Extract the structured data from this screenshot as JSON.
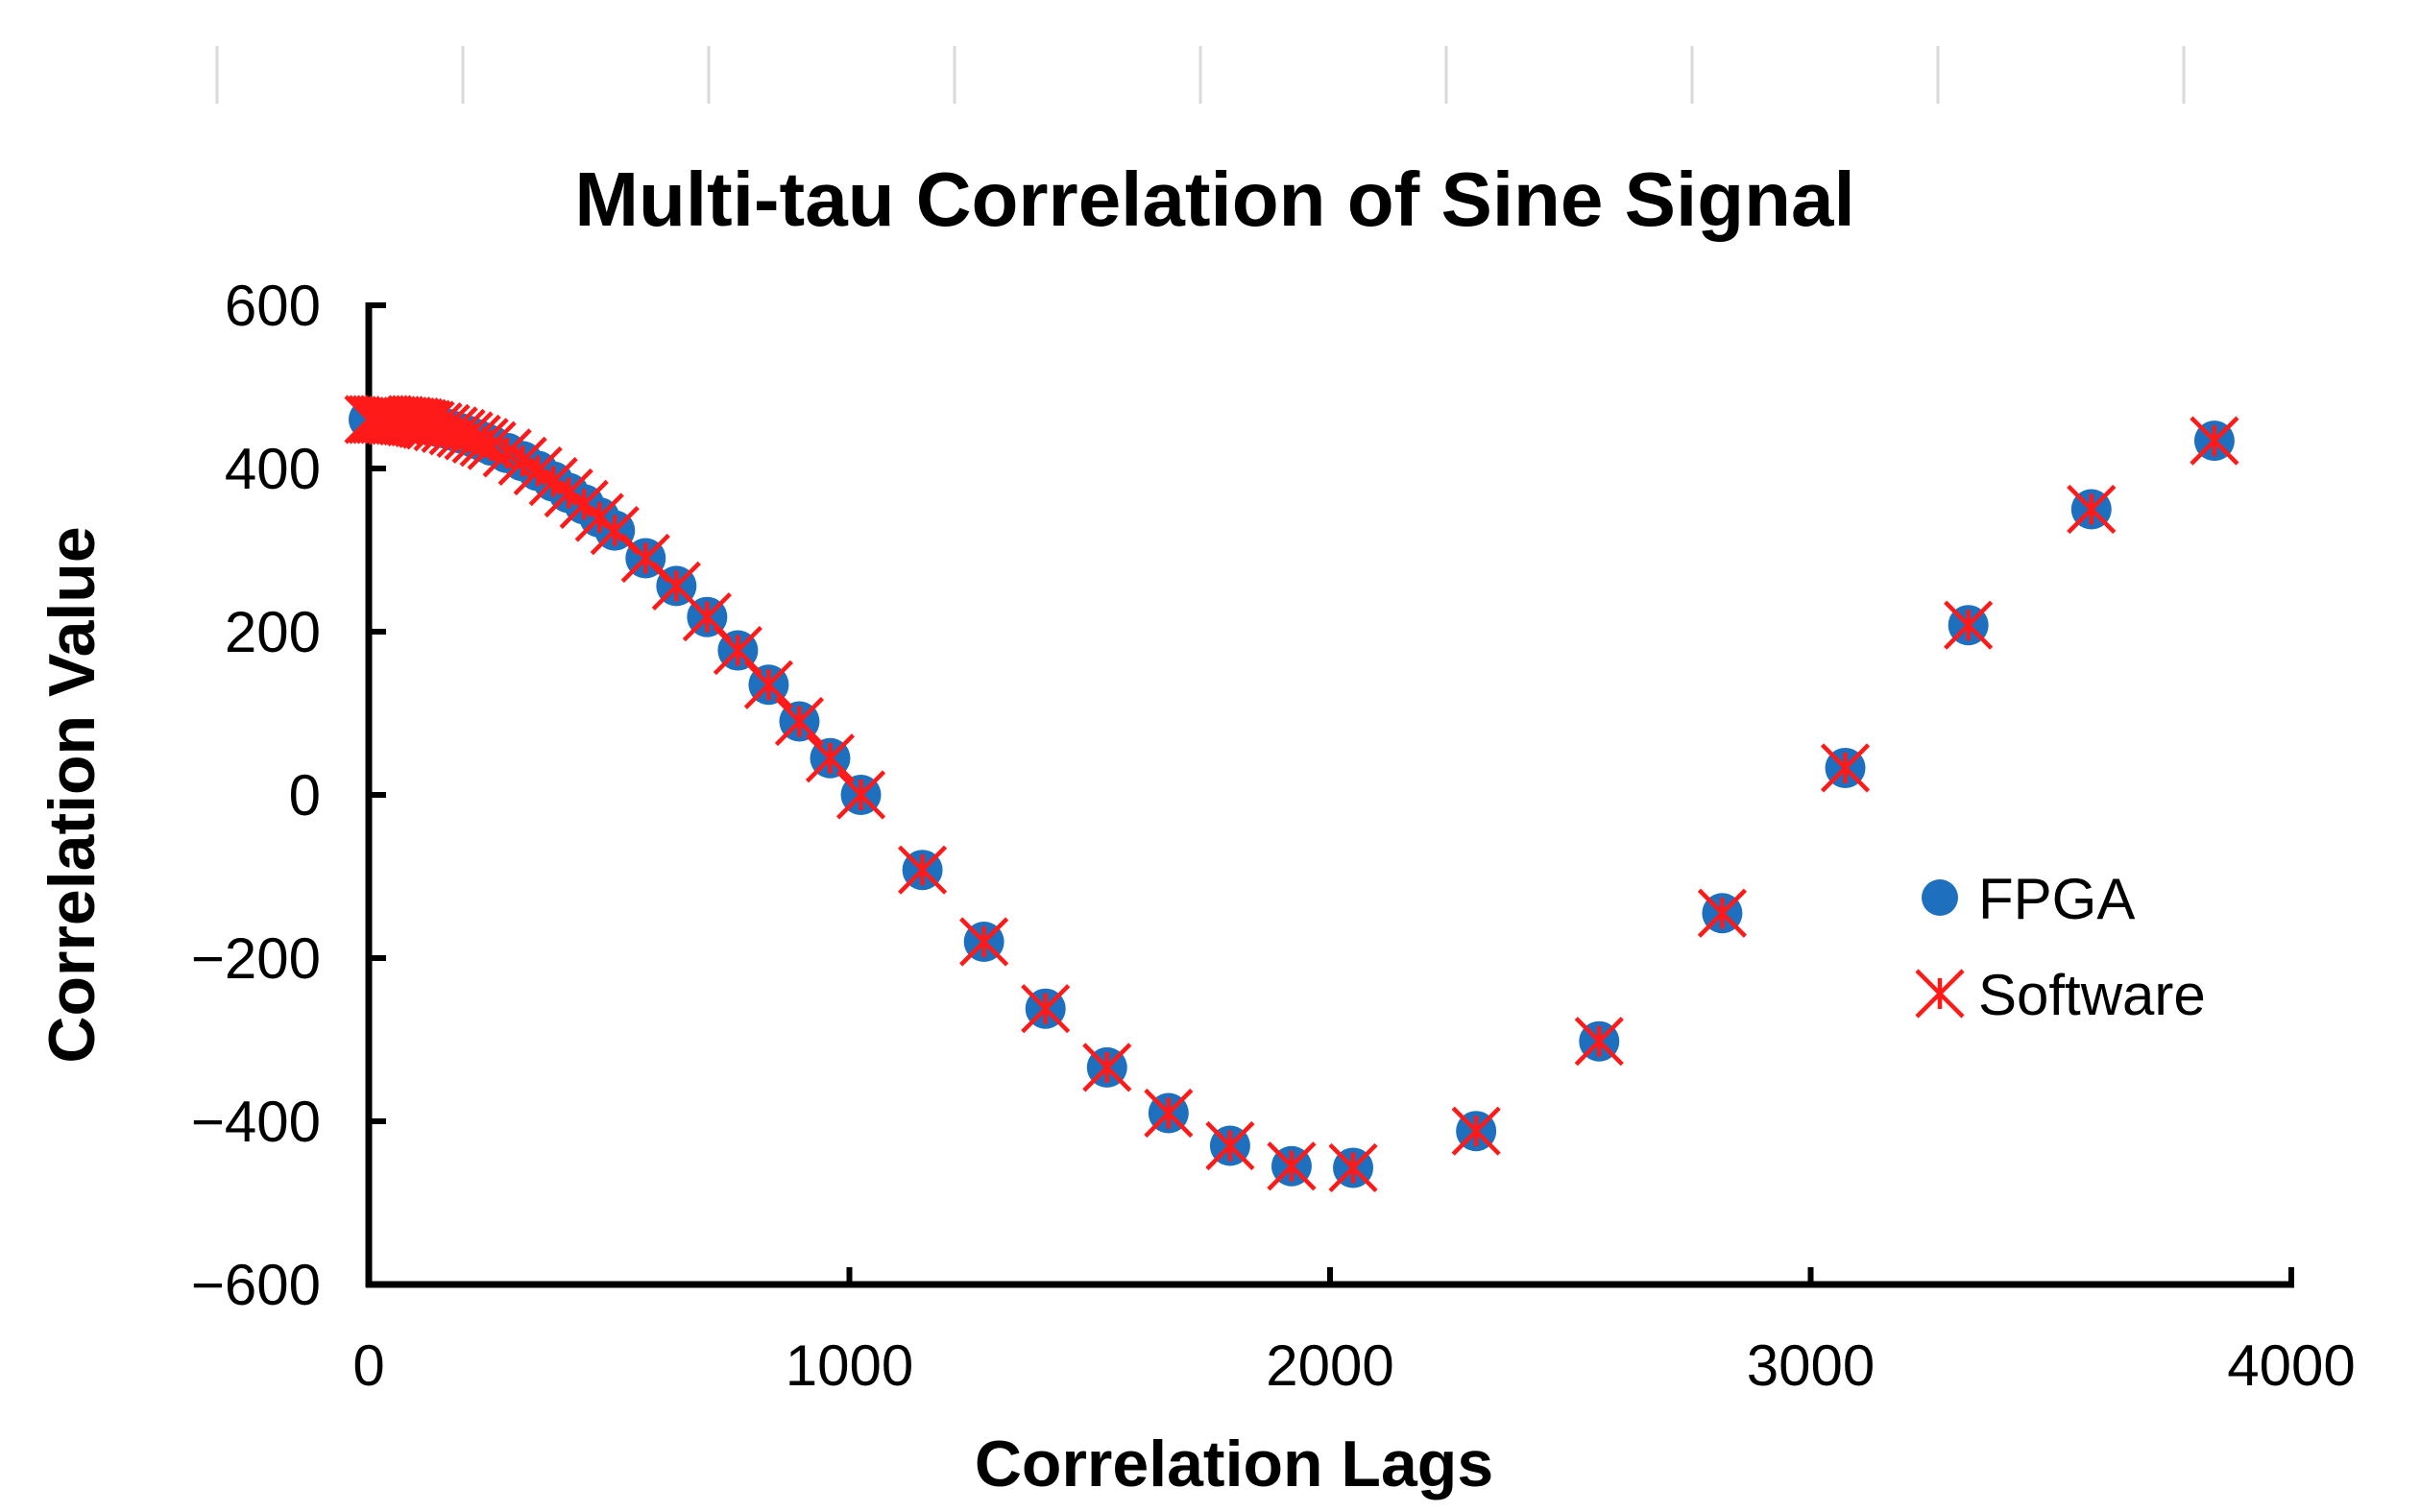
{
  "chart_data": {
    "type": "scatter",
    "title": "Multi-tau Correlation of Sine Signal",
    "xlabel": "Correlation Lags",
    "ylabel": "Correlation Value",
    "xlim": [
      0,
      4000
    ],
    "ylim": [
      -600,
      600
    ],
    "xticks": [
      0,
      1000,
      2000,
      3000,
      4000
    ],
    "yticks": [
      600,
      400,
      200,
      0,
      -200,
      -400,
      -600
    ],
    "ytick_labels": [
      "600",
      "400",
      "200",
      "0",
      "−200",
      "−400",
      "−600"
    ],
    "grid": false,
    "legend_position": "right",
    "series": [
      {
        "name": "FPGA",
        "marker": "circle",
        "color": "#1f6fbf",
        "x": [
          0,
          8,
          16,
          24,
          32,
          40,
          48,
          56,
          64,
          72,
          80,
          88,
          96,
          104,
          112,
          120,
          128,
          144,
          160,
          176,
          192,
          208,
          224,
          240,
          256,
          288,
          320,
          352,
          384,
          416,
          448,
          480,
          512,
          576,
          640,
          704,
          768,
          832,
          896,
          960,
          1024,
          1152,
          1280,
          1408,
          1536,
          1664,
          1792,
          1920,
          2048,
          2304,
          2560,
          2816,
          3072,
          3328,
          3584,
          3840
        ],
        "y": [
          460,
          460,
          460,
          460,
          460,
          460,
          459,
          459,
          459,
          458,
          458,
          457,
          457,
          456,
          455,
          454,
          453,
          451,
          449,
          446,
          443,
          440,
          436,
          432,
          428,
          419,
          409,
          397,
          384,
          370,
          356,
          340,
          324,
          290,
          256,
          218,
          177,
          135,
          90,
          45,
          0,
          -92,
          -180,
          -262,
          -334,
          -390,
          -430,
          -455,
          -457,
          -412,
          -302,
          -145,
          33,
          208,
          350,
          434
        ]
      },
      {
        "name": "Software",
        "marker": "x",
        "color": "#ff1a1a",
        "x": [
          0,
          8,
          16,
          24,
          32,
          40,
          48,
          56,
          64,
          72,
          80,
          88,
          96,
          104,
          112,
          120,
          128,
          144,
          160,
          176,
          192,
          208,
          224,
          240,
          256,
          288,
          320,
          352,
          384,
          416,
          448,
          480,
          512,
          576,
          640,
          704,
          768,
          832,
          896,
          960,
          1024,
          1152,
          1280,
          1408,
          1536,
          1664,
          1792,
          1920,
          2048,
          2304,
          2560,
          2816,
          3072,
          3328,
          3584,
          3840
        ],
        "y": [
          460,
          460,
          460,
          460,
          460,
          460,
          459,
          459,
          459,
          458,
          458,
          457,
          457,
          456,
          455,
          454,
          453,
          451,
          449,
          446,
          443,
          440,
          436,
          432,
          428,
          419,
          409,
          397,
          384,
          370,
          356,
          340,
          324,
          290,
          256,
          218,
          177,
          135,
          90,
          45,
          0,
          -92,
          -180,
          -262,
          -334,
          -390,
          -430,
          -455,
          -457,
          -412,
          -302,
          -145,
          33,
          208,
          350,
          434
        ]
      }
    ]
  }
}
